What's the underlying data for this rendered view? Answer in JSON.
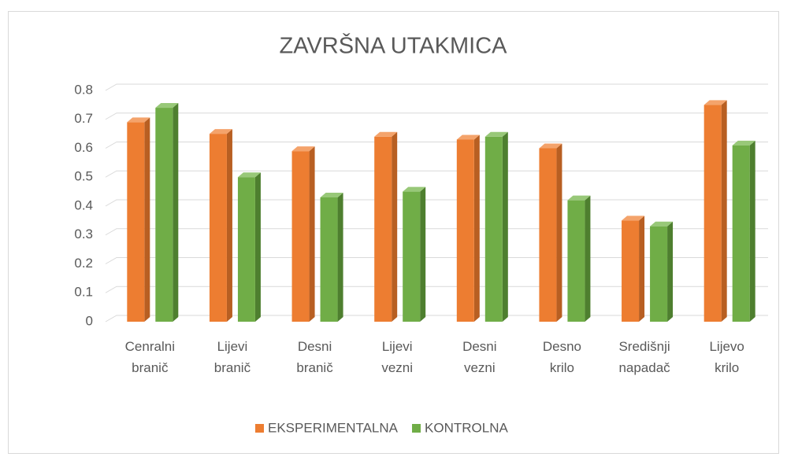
{
  "chart_data": {
    "type": "bar",
    "title": "ZAVRŠNA UTAKMICA",
    "categories": [
      [
        "Cenralni",
        "branič"
      ],
      [
        "Lijevi",
        "branič"
      ],
      [
        "Desni",
        "branič"
      ],
      [
        "Lijevi",
        "vezni"
      ],
      [
        "Desni",
        "vezni"
      ],
      [
        "Desno",
        "krilo"
      ],
      [
        "Središnji",
        "napadač"
      ],
      [
        "Lijevo",
        "krilo"
      ]
    ],
    "series": [
      {
        "name": "EKSPERIMENTALNA",
        "color": "#ed7d31",
        "side": "#b85f22",
        "top": "#f4a36b",
        "values": [
          0.69,
          0.65,
          0.59,
          0.64,
          0.63,
          0.6,
          0.35,
          0.75
        ]
      },
      {
        "name": "KONTROLNA",
        "color": "#70ad47",
        "side": "#4e7f2f",
        "top": "#98c878",
        "values": [
          0.74,
          0.5,
          0.43,
          0.45,
          0.64,
          0.42,
          0.33,
          0.61
        ]
      }
    ],
    "ylim": [
      0,
      0.8
    ],
    "yticks": [
      0,
      0.1,
      0.2,
      0.3,
      0.4,
      0.5,
      0.6,
      0.7,
      0.8
    ],
    "grid": true,
    "legend": "bottom"
  }
}
